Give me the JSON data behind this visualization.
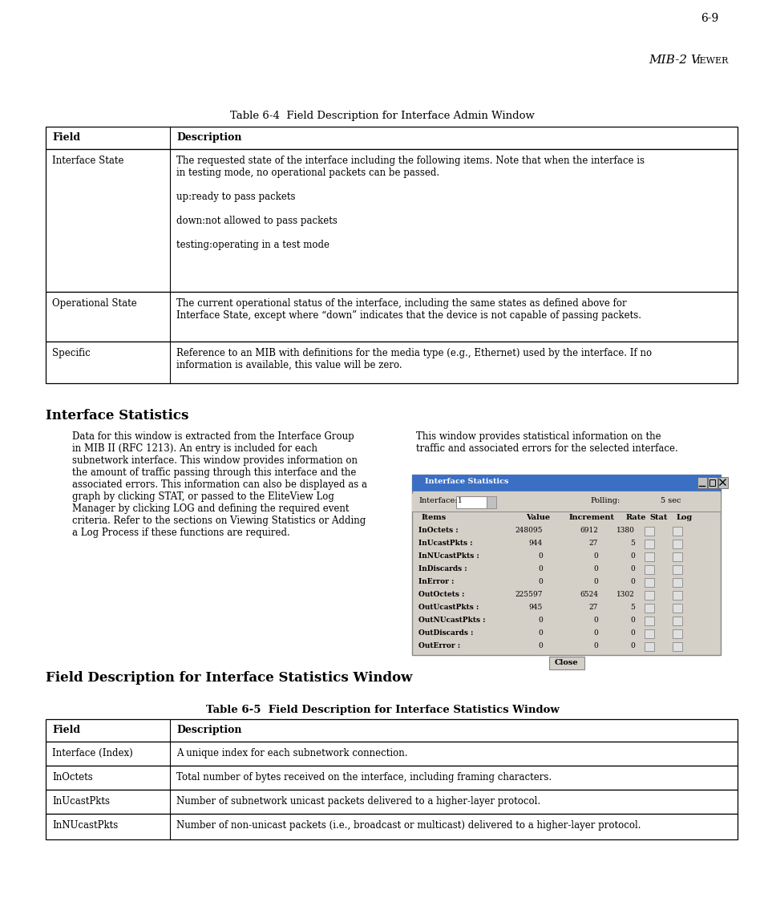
{
  "page_number": "6-9",
  "table1_title": "Table 6-4  Field Description for Interface Admin Window",
  "table1_headers": [
    "Field",
    "Description"
  ],
  "table1_rows": [
    {
      "field": "Interface State",
      "description": "The requested state of the interface including the following items. Note that when the interface is\nin testing mode, no operational packets can be passed.\n\nup:ready to pass packets\n\ndown:not allowed to pass packets\n\ntesting:operating in a test mode"
    },
    {
      "field": "Operational State",
      "description": "The current operational status of the interface, including the same states as defined above for\nInterface State, except where “down” indicates that the device is not capable of passing packets."
    },
    {
      "field": "Specific",
      "description": "Reference to an MIB with definitions for the media type (e.g., Ethernet) used by the interface. If no\ninformation is available, this value will be zero."
    }
  ],
  "section_title": "Interface Statistics",
  "left_paragraph": "Data for this window is extracted from the Interface Group\nin MIB II (RFC 1213). An entry is included for each\nsubnetwork interface. This window provides information on\nthe amount of traffic passing through this interface and the\nassociated errors. This information can also be displayed as a\ngraph by clicking STAT, or passed to the EliteView Log\nManager by clicking LOG and defining the required event\ncriteria. Refer to the sections on Viewing Statistics or Adding\na Log Process if these functions are required.",
  "right_paragraph": "This window provides statistical information on the\ntraffic and associated errors for the selected interface.",
  "subsection_title": "Field Description for Interface Statistics Window",
  "table2_title": "Table 6-5  Field Description for Interface Statistics Window",
  "table2_rows": [
    {
      "field": "Interface (Index)",
      "description": "A unique index for each subnetwork connection."
    },
    {
      "field": "InOctets",
      "description": "Total number of bytes received on the interface, including framing characters."
    },
    {
      "field": "InUcastPkts",
      "description": "Number of subnetwork unicast packets delivered to a higher-layer protocol."
    },
    {
      "field": "InNUcastPkts",
      "description": "Number of non-unicast packets (i.e., broadcast or multicast) delivered to a higher-layer protocol."
    }
  ],
  "screenshot_items": [
    {
      "label": "InOctets :",
      "value": "248095",
      "increment": "6912",
      "rate": "1380"
    },
    {
      "label": "InUcastPkts :",
      "value": "944",
      "increment": "27",
      "rate": "5"
    },
    {
      "label": "InNUcastPkts :",
      "value": "0",
      "increment": "0",
      "rate": "0"
    },
    {
      "label": "InDiscards :",
      "value": "0",
      "increment": "0",
      "rate": "0"
    },
    {
      "label": "InError :",
      "value": "0",
      "increment": "0",
      "rate": "0"
    },
    {
      "label": "OutOctets :",
      "value": "225597",
      "increment": "6524",
      "rate": "1302"
    },
    {
      "label": "OutUcastPkts :",
      "value": "945",
      "increment": "27",
      "rate": "5"
    },
    {
      "label": "OutNUcastPkts :",
      "value": "0",
      "increment": "0",
      "rate": "0"
    },
    {
      "label": "OutDiscards :",
      "value": "0",
      "increment": "0",
      "rate": "0"
    },
    {
      "label": "OutError :",
      "value": "0",
      "increment": "0",
      "rate": "0"
    }
  ]
}
